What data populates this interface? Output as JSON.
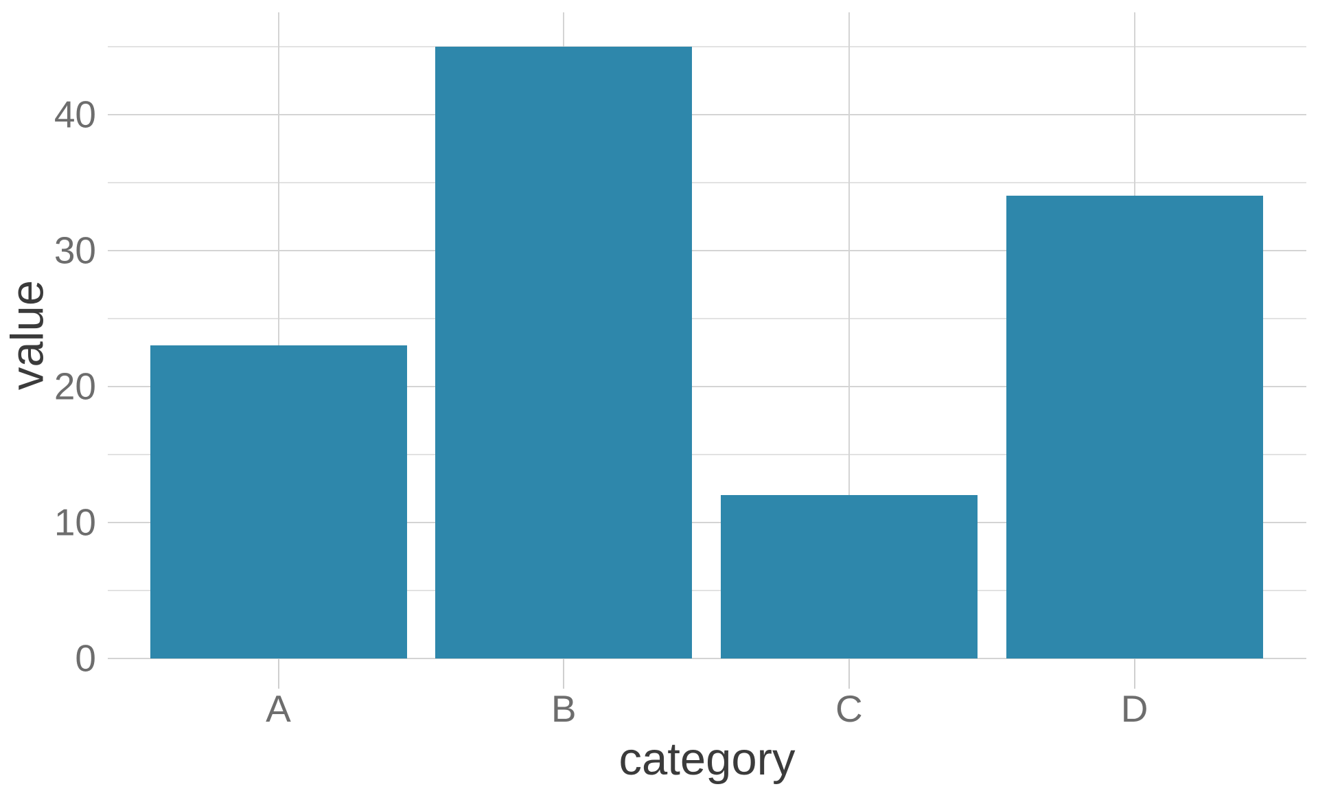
{
  "chart_data": {
    "type": "bar",
    "title": "",
    "categories": [
      "A",
      "B",
      "C",
      "D"
    ],
    "values": [
      23,
      45,
      12,
      34
    ],
    "xlabel": "category",
    "ylabel": "value",
    "ylim": [
      0,
      47.5
    ],
    "yticks_major": [
      0,
      10,
      20,
      30,
      40
    ],
    "yticks_minor": [
      5,
      15,
      25,
      35,
      45
    ],
    "grid": "on",
    "legend": "none",
    "colors": {
      "bar_fill": "#2e87ab",
      "grid_major": "#d4d4d4",
      "grid_minor": "#e2e2e2",
      "axis_tick": "#cfcfcf",
      "tick_label": "#6d6d6d",
      "axis_title": "#3b3b3b",
      "background": "#ffffff"
    }
  }
}
